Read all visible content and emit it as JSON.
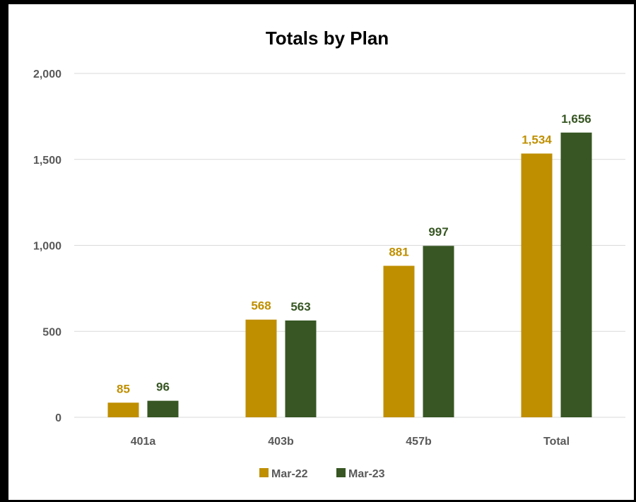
{
  "chart_data": {
    "type": "bar",
    "title": "Totals by Plan",
    "categories": [
      "401a",
      "403b",
      "457b",
      "Total"
    ],
    "series": [
      {
        "name": "Mar-22",
        "color": "#BF8F00",
        "values": [
          85,
          568,
          881,
          1534
        ],
        "labels": [
          "85",
          "568",
          "881",
          "1,534"
        ]
      },
      {
        "name": "Mar-23",
        "color": "#375623",
        "values": [
          96,
          563,
          997,
          1656
        ],
        "labels": [
          "96",
          "563",
          "997",
          "1,656"
        ]
      }
    ],
    "ylim": [
      0,
      2000
    ],
    "yticks": [
      0,
      500,
      1000,
      1500,
      2000
    ],
    "ytick_labels": [
      "0",
      "500",
      "1,000",
      "1,500",
      "2,000"
    ],
    "xlabel": "",
    "ylabel": "",
    "grid": true,
    "legend_position": "bottom",
    "gridline_color": "#D9D9D9"
  }
}
